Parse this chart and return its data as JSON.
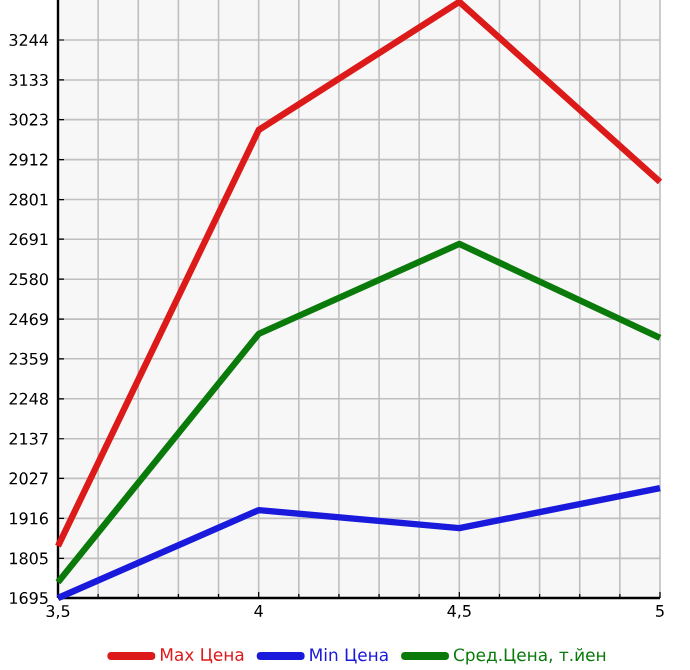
{
  "chart_data": {
    "type": "line",
    "x": [
      3.5,
      4,
      4.5,
      5
    ],
    "series": [
      {
        "name": "Max Цена",
        "color": "#dd1a1a",
        "values": [
          1839,
          2994,
          3350,
          2850
        ]
      },
      {
        "name": "Min Цена",
        "color": "#1a1add",
        "values": [
          1695,
          1939,
          1889,
          2000
        ]
      },
      {
        "name": "Сред.Цена, т.йен",
        "color": "#0a7a0a",
        "values": [
          1739,
          2428,
          2678,
          2417
        ]
      }
    ],
    "xlim": [
      3.5,
      5
    ],
    "xticks": [
      {
        "value": 3.5,
        "label": "3,5"
      },
      {
        "value": 4,
        "label": "4"
      },
      {
        "value": 4.5,
        "label": "4,5"
      },
      {
        "value": 5,
        "label": "5"
      }
    ],
    "ylim": [
      1695,
      3355
    ],
    "yticks": [
      1695,
      1805,
      1916,
      2027,
      2137,
      2248,
      2359,
      2469,
      2580,
      2691,
      2801,
      2912,
      3023,
      3133,
      3244
    ],
    "grid": true,
    "legend": "bottom",
    "marker": "none",
    "line_style": "solid"
  }
}
